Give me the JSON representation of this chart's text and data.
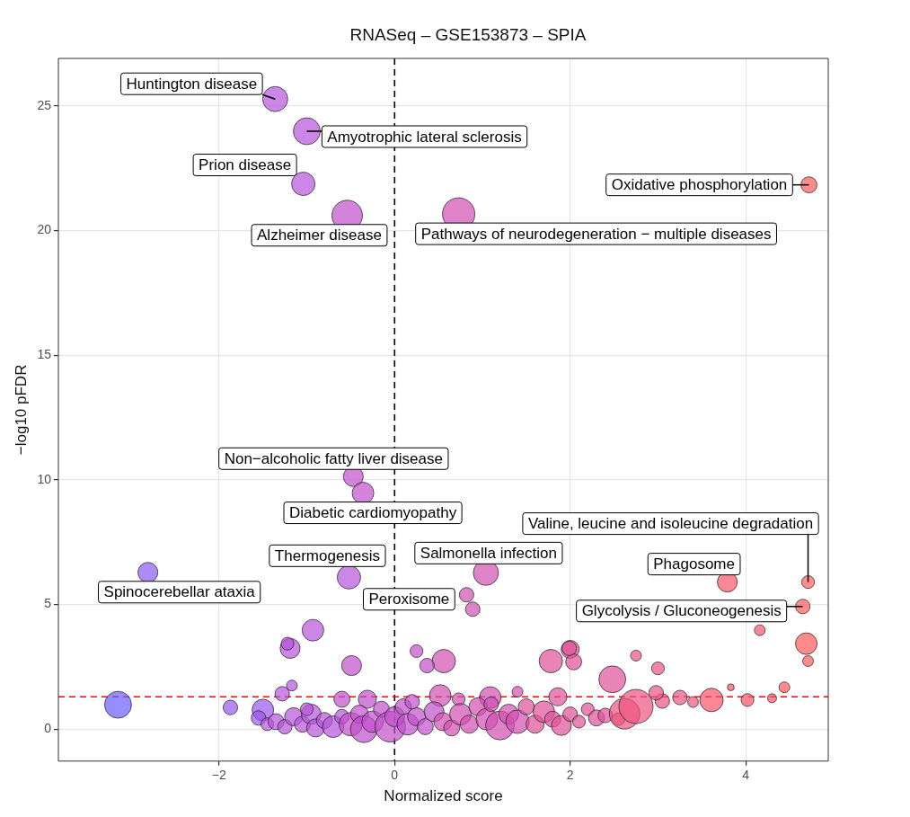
{
  "chart_data": {
    "type": "bubble",
    "title": "RNASeq – GSE153873 – SPIA",
    "xlabel": "Normalized score",
    "ylabel": "−log10 pFDR",
    "xlim": [
      -3.83,
      4.94
    ],
    "xticks": [
      {
        "value": -2,
        "label": "−2"
      },
      0,
      2,
      4
    ],
    "ylim": [
      -1.28,
      26.9
    ],
    "yticks": [
      0,
      5,
      10,
      15,
      20,
      25
    ],
    "grid": true,
    "legend": false,
    "x": [
      -1.36,
      -1.0,
      -1.04,
      -0.54,
      0.73,
      4.72,
      -0.47,
      -0.36,
      -2.81,
      -0.52,
      1.04,
      0.82,
      0.89,
      3.79,
      4.71,
      4.65,
      4.16,
      4.69,
      4.71,
      2.75,
      3.0,
      2.48,
      3.83,
      4.44,
      4.02,
      4.3,
      3.61,
      3.4,
      3.25,
      3.05,
      2.98,
      2.0,
      2.04,
      -3.15,
      -1.87,
      -0.93,
      -1.19,
      -1.22,
      -1.17,
      -1.28,
      -1.5,
      -0.49,
      0.25,
      0.56,
      0.37,
      1.78,
      1.99,
      -0.31,
      0.52,
      0.73,
      1.09,
      1.4,
      1.86,
      -1.55,
      -1.45,
      -1.35,
      -1.25,
      -1.15,
      -1.05,
      -0.95,
      -0.9,
      -0.8,
      -0.7,
      -0.6,
      -0.5,
      -0.4,
      -0.35,
      -0.25,
      -0.15,
      -0.05,
      0.0,
      0.1,
      0.15,
      0.25,
      0.35,
      0.45,
      0.55,
      0.65,
      0.75,
      0.85,
      0.95,
      1.05,
      1.1,
      1.2,
      1.3,
      1.4,
      1.5,
      1.6,
      1.7,
      1.8,
      1.9,
      2.0,
      2.1,
      2.2,
      2.3,
      2.4,
      2.55,
      2.62,
      2.75,
      -0.6,
      0.2,
      -1.0
    ],
    "values": [
      25.27,
      23.98,
      21.87,
      20.6,
      20.66,
      21.83,
      10.13,
      9.47,
      6.29,
      6.09,
      6.27,
      5.39,
      4.81,
      5.9,
      5.9,
      4.92,
      3.97,
      3.43,
      2.73,
      2.95,
      2.44,
      2.0,
      1.68,
      1.68,
      1.17,
      1.24,
      1.17,
      1.09,
      1.27,
      1.13,
      1.46,
      3.2,
      2.7,
      0.98,
      0.87,
      3.97,
      3.24,
      3.43,
      1.75,
      1.42,
      0.77,
      2.55,
      3.13,
      2.73,
      2.55,
      2.73,
      3.24,
      1.2,
      1.35,
      1.2,
      1.27,
      1.5,
      1.3,
      0.45,
      0.2,
      0.3,
      0.1,
      0.5,
      0.2,
      0.6,
      0.05,
      0.35,
      0.1,
      0.5,
      0.2,
      0.6,
      0.0,
      0.3,
      0.8,
      0.1,
      0.5,
      0.9,
      0.2,
      0.5,
      0.1,
      0.7,
      0.3,
      0.05,
      0.6,
      0.2,
      0.9,
      0.4,
      1.0,
      0.15,
      0.6,
      0.3,
      0.9,
      0.2,
      0.7,
      0.4,
      0.15,
      0.6,
      0.3,
      0.8,
      0.45,
      0.55,
      0.4,
      0.62,
      0.91,
      1.2,
      1.1,
      0.8
    ],
    "sizes": [
      0.54,
      0.62,
      0.47,
      0.8,
      0.9,
      0.22,
      0.34,
      0.4,
      0.34,
      0.47,
      0.54,
      0.18,
      0.18,
      0.34,
      0.14,
      0.18,
      0.1,
      0.4,
      0.1,
      0.1,
      0.14,
      0.62,
      0.04,
      0.1,
      0.14,
      0.07,
      0.47,
      0.1,
      0.18,
      0.18,
      0.18,
      0.28,
      0.22,
      0.62,
      0.18,
      0.4,
      0.34,
      0.14,
      0.1,
      0.18,
      0.4,
      0.34,
      0.14,
      0.47,
      0.18,
      0.47,
      0.18,
      0.28,
      0.4,
      0.14,
      0.4,
      0.1,
      0.28,
      0.18,
      0.14,
      0.22,
      0.18,
      0.28,
      0.22,
      0.34,
      0.28,
      0.22,
      0.4,
      0.18,
      0.47,
      0.28,
      0.62,
      0.4,
      0.22,
      0.8,
      0.34,
      0.22,
      0.4,
      0.28,
      0.22,
      0.34,
      0.28,
      0.22,
      0.4,
      0.28,
      0.28,
      0.4,
      0.18,
      0.71,
      0.34,
      0.47,
      0.22,
      0.28,
      0.4,
      0.22,
      0.34,
      0.18,
      0.14,
      0.14,
      0.22,
      0.18,
      0.14,
      0.8,
      1,
      0.22,
      0.18,
      0.14
    ],
    "colors": [
      "#b652dc",
      "#b652dc",
      "#b652dc",
      "#c24fcc",
      "#d24fb2",
      "#ff5a5a",
      "#c24fcc",
      "#c24fcc",
      "#8a5cf0",
      "#b652dc",
      "#d24fb2",
      "#d24fb2",
      "#d24fb2",
      "#f65468",
      "#ff5a5a",
      "#ff5a5a",
      "#f65468",
      "#ff5a5a",
      "#ff5a5a",
      "#ec5280",
      "#ec5280",
      "#e05098",
      "#f65468",
      "#ff5a5a",
      "#f65468",
      "#f65468",
      "#f65468",
      "#ec5280",
      "#ec5280",
      "#ec5280",
      "#ec5280",
      "#e05098",
      "#e05098",
      "#6a5cff",
      "#9a55ee",
      "#b652dc",
      "#b652dc",
      "#b652dc",
      "#b652dc",
      "#b652dc",
      "#9a55ee",
      "#c24fcc",
      "#c24fcc",
      "#d24fb2",
      "#c24fcc",
      "#e05098",
      "#e05098",
      "#c24fcc",
      "#d24fb2",
      "#d24fb2",
      "#d24fb2",
      "#d24fb2",
      "#e05098",
      "#9a55ee",
      "#b652dc",
      "#b652dc",
      "#b652dc",
      "#b652dc",
      "#b652dc",
      "#b652dc",
      "#b652dc",
      "#b652dc",
      "#b652dc",
      "#b652dc",
      "#c24fcc",
      "#c24fcc",
      "#c24fcc",
      "#c24fcc",
      "#c24fcc",
      "#c24fcc",
      "#c24fcc",
      "#c24fcc",
      "#c24fcc",
      "#c24fcc",
      "#c24fcc",
      "#c24fcc",
      "#d24fb2",
      "#d24fb2",
      "#d24fb2",
      "#d24fb2",
      "#d24fb2",
      "#d24fb2",
      "#d24fb2",
      "#d24fb2",
      "#d24fb2",
      "#d24fb2",
      "#e05098",
      "#e05098",
      "#e05098",
      "#e05098",
      "#e05098",
      "#e05098",
      "#e05098",
      "#e05098",
      "#e05098",
      "#e05098",
      "#ec5280",
      "#ec5280",
      "#ec5280",
      "#c24fcc",
      "#c24fcc",
      "#b652dc"
    ],
    "ref_lines": [
      {
        "axis": "x",
        "value": 0,
        "color": "#000000",
        "line_style": "dashed"
      },
      {
        "axis": "y",
        "value": 1.3,
        "color": "#ff0000",
        "line_style": "dashed"
      }
    ],
    "annotations": [
      {
        "text": "Huntington disease",
        "x": -1.36,
        "y": 25.27
      },
      {
        "text": "Amyotrophic lateral sclerosis",
        "x": -1.0,
        "y": 23.98
      },
      {
        "text": "Prion disease",
        "x": -1.04,
        "y": 21.87
      },
      {
        "text": "Alzheimer disease",
        "x": -0.54,
        "y": 20.6
      },
      {
        "text": "Pathways of neurodegeneration − multiple diseases",
        "x": 0.73,
        "y": 20.66
      },
      {
        "text": "Oxidative phosphorylation",
        "x": 4.72,
        "y": 21.83
      },
      {
        "text": "Non−alcoholic fatty liver disease",
        "x": -0.47,
        "y": 10.13
      },
      {
        "text": "Diabetic cardiomyopathy",
        "x": -0.36,
        "y": 9.47
      },
      {
        "text": "Valine, leucine and isoleucine degradation",
        "x": 4.71,
        "y": 5.9
      },
      {
        "text": "Thermogenesis",
        "x": -0.52,
        "y": 6.09
      },
      {
        "text": "Salmonella infection",
        "x": 1.04,
        "y": 6.27
      },
      {
        "text": "Spinocerebellar ataxia",
        "x": -2.81,
        "y": 6.29
      },
      {
        "text": "Phagosome",
        "x": 3.79,
        "y": 5.9
      },
      {
        "text": "Peroxisome",
        "x": 0.82,
        "y": 5.39
      },
      {
        "text": "Glycolysis / Gluconeogenesis",
        "x": 4.65,
        "y": 4.92
      }
    ]
  }
}
